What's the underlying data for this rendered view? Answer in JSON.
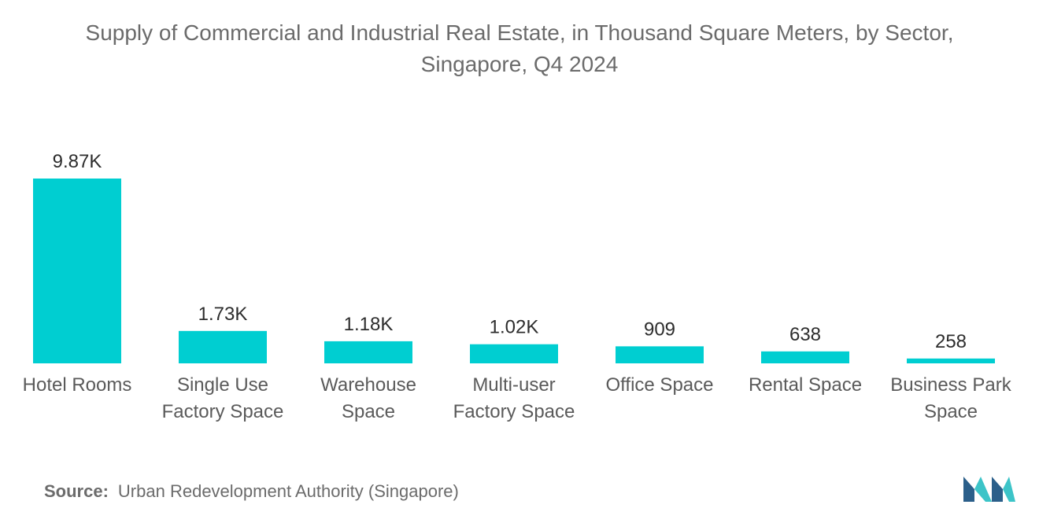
{
  "title": {
    "line1": "Supply of Commercial and Industrial Real Estate, in Thousand Square Meters, by Sector,",
    "line2": "Singapore, Q4 2024"
  },
  "source": {
    "label": "Source:",
    "text": "Urban Redevelopment Authority (Singapore)"
  },
  "colors": {
    "bar": "#00CED1",
    "logo_dark": "#2b5f8a",
    "logo_light": "#3cc4c8"
  },
  "chart_data": {
    "type": "bar",
    "title": "Supply of Commercial and Industrial Real Estate, in Thousand Square Meters, by Sector, Singapore, Q4 2024",
    "xlabel": "",
    "ylabel": "",
    "grid": false,
    "ylim": [
      0,
      9870
    ],
    "categories": [
      [
        "Hotel Rooms"
      ],
      [
        "Single Use",
        "Factory Space"
      ],
      [
        "Warehouse",
        "Space"
      ],
      [
        "Multi-user",
        "Factory Space"
      ],
      [
        "Office Space"
      ],
      [
        "Rental Space"
      ],
      [
        "Business Park",
        "Space"
      ]
    ],
    "values": [
      9870,
      1730,
      1180,
      1020,
      909,
      638,
      258
    ],
    "labels": [
      "9.87K",
      "1.73K",
      "1.18K",
      "1.02K",
      "909",
      "638",
      "258"
    ]
  }
}
